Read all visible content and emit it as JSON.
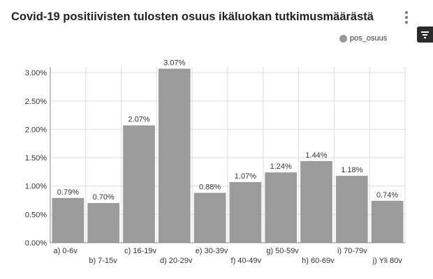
{
  "header": {
    "title": "Covid-19 positiivisten tulosten osuus ikäluokan tutkimusmäärästä",
    "menu_icon": "kebab-menu-icon",
    "filter_icon": "filter-icon"
  },
  "colors": {
    "bar": "#9b9b9b",
    "grid": "#dddddd",
    "axis": "#888888"
  },
  "chart_data": {
    "type": "bar",
    "categories": [
      "a) 0-6v",
      "b) 7-15v",
      "c) 16-19v",
      "d) 20-29v",
      "e) 30-39v",
      "f) 40-49v",
      "g) 50-59v",
      "h) 60-69v",
      "i) 70-79v",
      "j) Yli 80v"
    ],
    "series": [
      {
        "name": "pos_osuus",
        "values": [
          0.79,
          0.7,
          2.07,
          3.07,
          0.88,
          1.07,
          1.24,
          1.44,
          1.18,
          0.74
        ]
      }
    ],
    "data_labels": [
      "0.79%",
      "0.70%",
      "2.07%",
      "3.07%",
      "0.88%",
      "1.07%",
      "1.24%",
      "1.44%",
      "1.18%",
      "0.74%"
    ],
    "yticks": [
      "0.00%",
      "0.50%",
      "1.00%",
      "1.50%",
      "2.00%",
      "2.50%",
      "3.00%"
    ],
    "ytick_values": [
      0,
      0.5,
      1.0,
      1.5,
      2.0,
      2.5,
      3.0
    ],
    "ylim": [
      0,
      3.1
    ],
    "xlabel": "",
    "ylabel": "",
    "grid": true,
    "legend": "top-right",
    "unit": "%"
  }
}
